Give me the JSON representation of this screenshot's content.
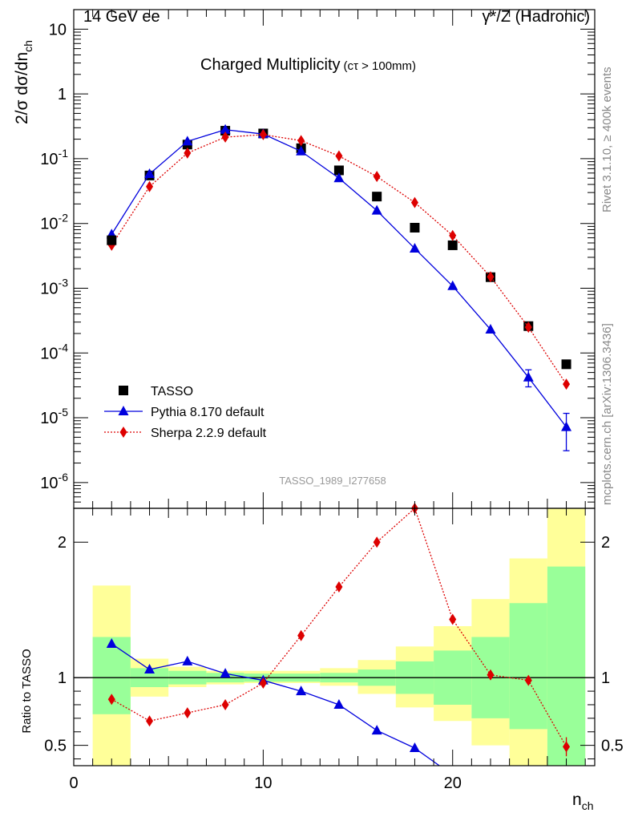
{
  "header": {
    "left": "14 GeV ee",
    "right": "γ*/Z (Hadronic)"
  },
  "side_labels": {
    "top": "Rivet 3.1.10, ≥ 400k events",
    "bottom": "mcplots.cern.ch [arXiv:1306.3436]"
  },
  "chart_data": [
    {
      "type": "scatter",
      "title": "Charged Multiplicity",
      "title_suffix": "(cτ > 100mm)",
      "ylabel": "2/σ dσ/dn_ch",
      "yscale": "log",
      "ylim": [
        4e-07,
        20
      ],
      "xlim": [
        0,
        27.5
      ],
      "ytick_labels": [
        "10",
        "1",
        "10^-1",
        "10^-2",
        "10^-3",
        "10^-4",
        "10^-5",
        "10^-6"
      ],
      "watermark": "TASSO_1989_I277658",
      "legend_position": "bottom-left",
      "series": [
        {
          "name": "TASSO",
          "color": "#000000",
          "marker": "square",
          "x": [
            2,
            4,
            6,
            8,
            10,
            12,
            14,
            16,
            18,
            20,
            22,
            24,
            26
          ],
          "y": [
            0.0055,
            0.055,
            0.165,
            0.27,
            0.245,
            0.145,
            0.066,
            0.026,
            0.0086,
            0.0046,
            0.00148,
            0.00026,
            6.7e-05
          ]
        },
        {
          "name": "Pythia 8.170 default",
          "color": "#0000dd",
          "marker": "triangle",
          "line": "solid",
          "x": [
            2,
            4,
            6,
            8,
            10,
            12,
            14,
            16,
            18,
            20,
            22,
            24,
            26
          ],
          "y": [
            0.0068,
            0.058,
            0.185,
            0.28,
            0.24,
            0.13,
            0.05,
            0.0158,
            0.0041,
            0.00108,
            0.00023,
            4.2e-05,
            7.2e-06
          ],
          "yerr_low": [
            0,
            0,
            0,
            0,
            0,
            0,
            0,
            0,
            0,
            0,
            0,
            1.2e-05,
            4.1e-06
          ],
          "yerr_high": [
            0,
            0,
            0,
            0,
            0,
            0,
            0,
            0,
            0,
            0,
            0,
            1.3e-05,
            4.5e-06
          ]
        },
        {
          "name": "Sherpa 2.2.9 default",
          "color": "#dd0000",
          "marker": "diamond",
          "line": "dotted",
          "x": [
            2,
            4,
            6,
            8,
            10,
            12,
            14,
            16,
            18,
            20,
            22,
            24,
            26
          ],
          "y": [
            0.0046,
            0.037,
            0.122,
            0.215,
            0.235,
            0.19,
            0.11,
            0.053,
            0.021,
            0.0065,
            0.0015,
            0.00025,
            3.3e-05
          ]
        }
      ]
    },
    {
      "type": "scatter",
      "xlabel": "n_ch",
      "ylabel": "Ratio to TASSO",
      "ylim": [
        0.35,
        2.25
      ],
      "xlim": [
        0,
        27.5
      ],
      "xticks": [
        0,
        10,
        20
      ],
      "yticks": [
        0.5,
        1,
        2
      ],
      "reference_line": 1,
      "uncertainty_bands": {
        "x_edges": [
          1,
          3,
          5,
          7,
          9,
          11,
          13,
          15,
          17,
          19,
          21,
          23,
          25,
          27
        ],
        "inner": [
          [
            0.73,
            1.3
          ],
          [
            0.93,
            1.07
          ],
          [
            0.95,
            1.05
          ],
          [
            0.965,
            1.035
          ],
          [
            0.97,
            1.03
          ],
          [
            0.97,
            1.03
          ],
          [
            0.965,
            1.035
          ],
          [
            0.94,
            1.06
          ],
          [
            0.88,
            1.12
          ],
          [
            0.8,
            1.2
          ],
          [
            0.7,
            1.3
          ],
          [
            0.62,
            1.55
          ],
          [
            0.35,
            1.82
          ],
          [
            0.35,
            2.25
          ]
        ],
        "outer": [
          [
            0.35,
            1.68
          ],
          [
            0.86,
            1.14
          ],
          [
            0.93,
            1.08
          ],
          [
            0.95,
            1.05
          ],
          [
            0.96,
            1.05
          ],
          [
            0.96,
            1.05
          ],
          [
            0.94,
            1.07
          ],
          [
            0.88,
            1.13
          ],
          [
            0.78,
            1.23
          ],
          [
            0.68,
            1.38
          ],
          [
            0.5,
            1.58
          ],
          [
            0.35,
            1.88
          ],
          [
            0.35,
            2.25
          ],
          [
            0.35,
            2.25
          ]
        ]
      },
      "band_colors": {
        "inner": "#99ff99",
        "outer": "#ffff99"
      },
      "series": [
        {
          "name": "Pythia 8.170 default",
          "color": "#0000dd",
          "marker": "triangle",
          "line": "solid",
          "x": [
            2,
            4,
            6,
            8,
            10,
            12,
            14,
            16,
            18,
            19.3
          ],
          "y": [
            1.25,
            1.06,
            1.12,
            1.03,
            0.98,
            0.9,
            0.8,
            0.61,
            0.48,
            0.35
          ],
          "marker_count": 9
        },
        {
          "name": "Sherpa 2.2.9 default",
          "color": "#dd0000",
          "marker": "diamond",
          "line": "dotted",
          "x": [
            2,
            4,
            6,
            8,
            10,
            12,
            14,
            16,
            18,
            20,
            22,
            24,
            26
          ],
          "y": [
            0.84,
            0.68,
            0.74,
            0.8,
            0.96,
            1.31,
            1.67,
            2.0,
            2.25,
            1.43,
            1.02,
            0.98,
            0.49
          ],
          "yerr_low": [
            0,
            0,
            0,
            0,
            0,
            0,
            0,
            0,
            0,
            0,
            0,
            0,
            0.07
          ],
          "yerr_high": [
            0,
            0,
            0,
            0,
            0,
            0,
            0,
            0,
            0,
            0,
            0,
            0,
            0.07
          ]
        }
      ]
    }
  ]
}
